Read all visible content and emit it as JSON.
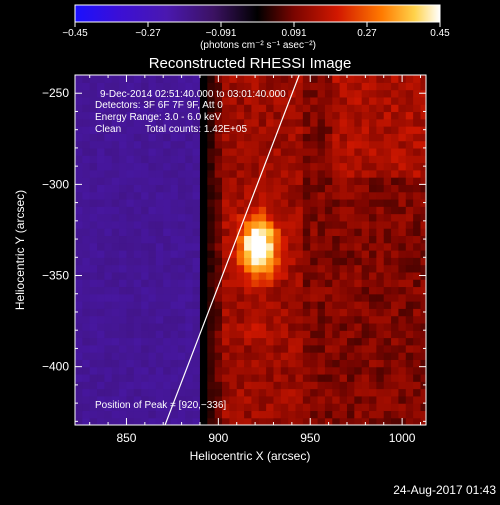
{
  "chart_data": {
    "type": "heatmap",
    "title": "Reconstructed RHESSI Image",
    "xlabel": "Heliocentric X (arcsec)",
    "ylabel": "Heliocentric Y (arcsec)",
    "xlim": [
      822,
      1013
    ],
    "ylim": [
      -432,
      -240
    ],
    "x_ticks": [
      850,
      900,
      950,
      1000
    ],
    "y_ticks": [
      -250,
      -300,
      -350,
      -400
    ],
    "x_tick_labels": [
      "850",
      "900",
      "950",
      "1000"
    ],
    "y_tick_labels": [
      "−250",
      "−300",
      "−350",
      "−400"
    ],
    "colorbar": {
      "min": -0.45,
      "max": 0.45,
      "tick_labels": [
        "−0.45",
        "−0.27",
        "−0.091",
        "0.091",
        "0.27",
        "0.45"
      ],
      "units_label": "(photons cm⁻² s⁻¹ asec⁻²)"
    },
    "annotations": {
      "time_range": "9-Dec-2014 02:51:40.000 to 03:01:40.000",
      "detectors": "Detectors: 3F 6F 7F 9F, Att 0",
      "energy_range": "Energy Range: 3.0 - 6.0 keV",
      "clean_label": "Clean",
      "total_counts": "Total counts: 1.42E+05",
      "peak_position": "Position of Peak = [920,−336]"
    },
    "peak": {
      "x": 920,
      "y": -336
    },
    "limb": [
      {
        "x": 871,
        "y": -432
      },
      {
        "x": 944,
        "y": -240
      }
    ]
  },
  "footer": {
    "date": "24-Aug-2017 01:43"
  }
}
